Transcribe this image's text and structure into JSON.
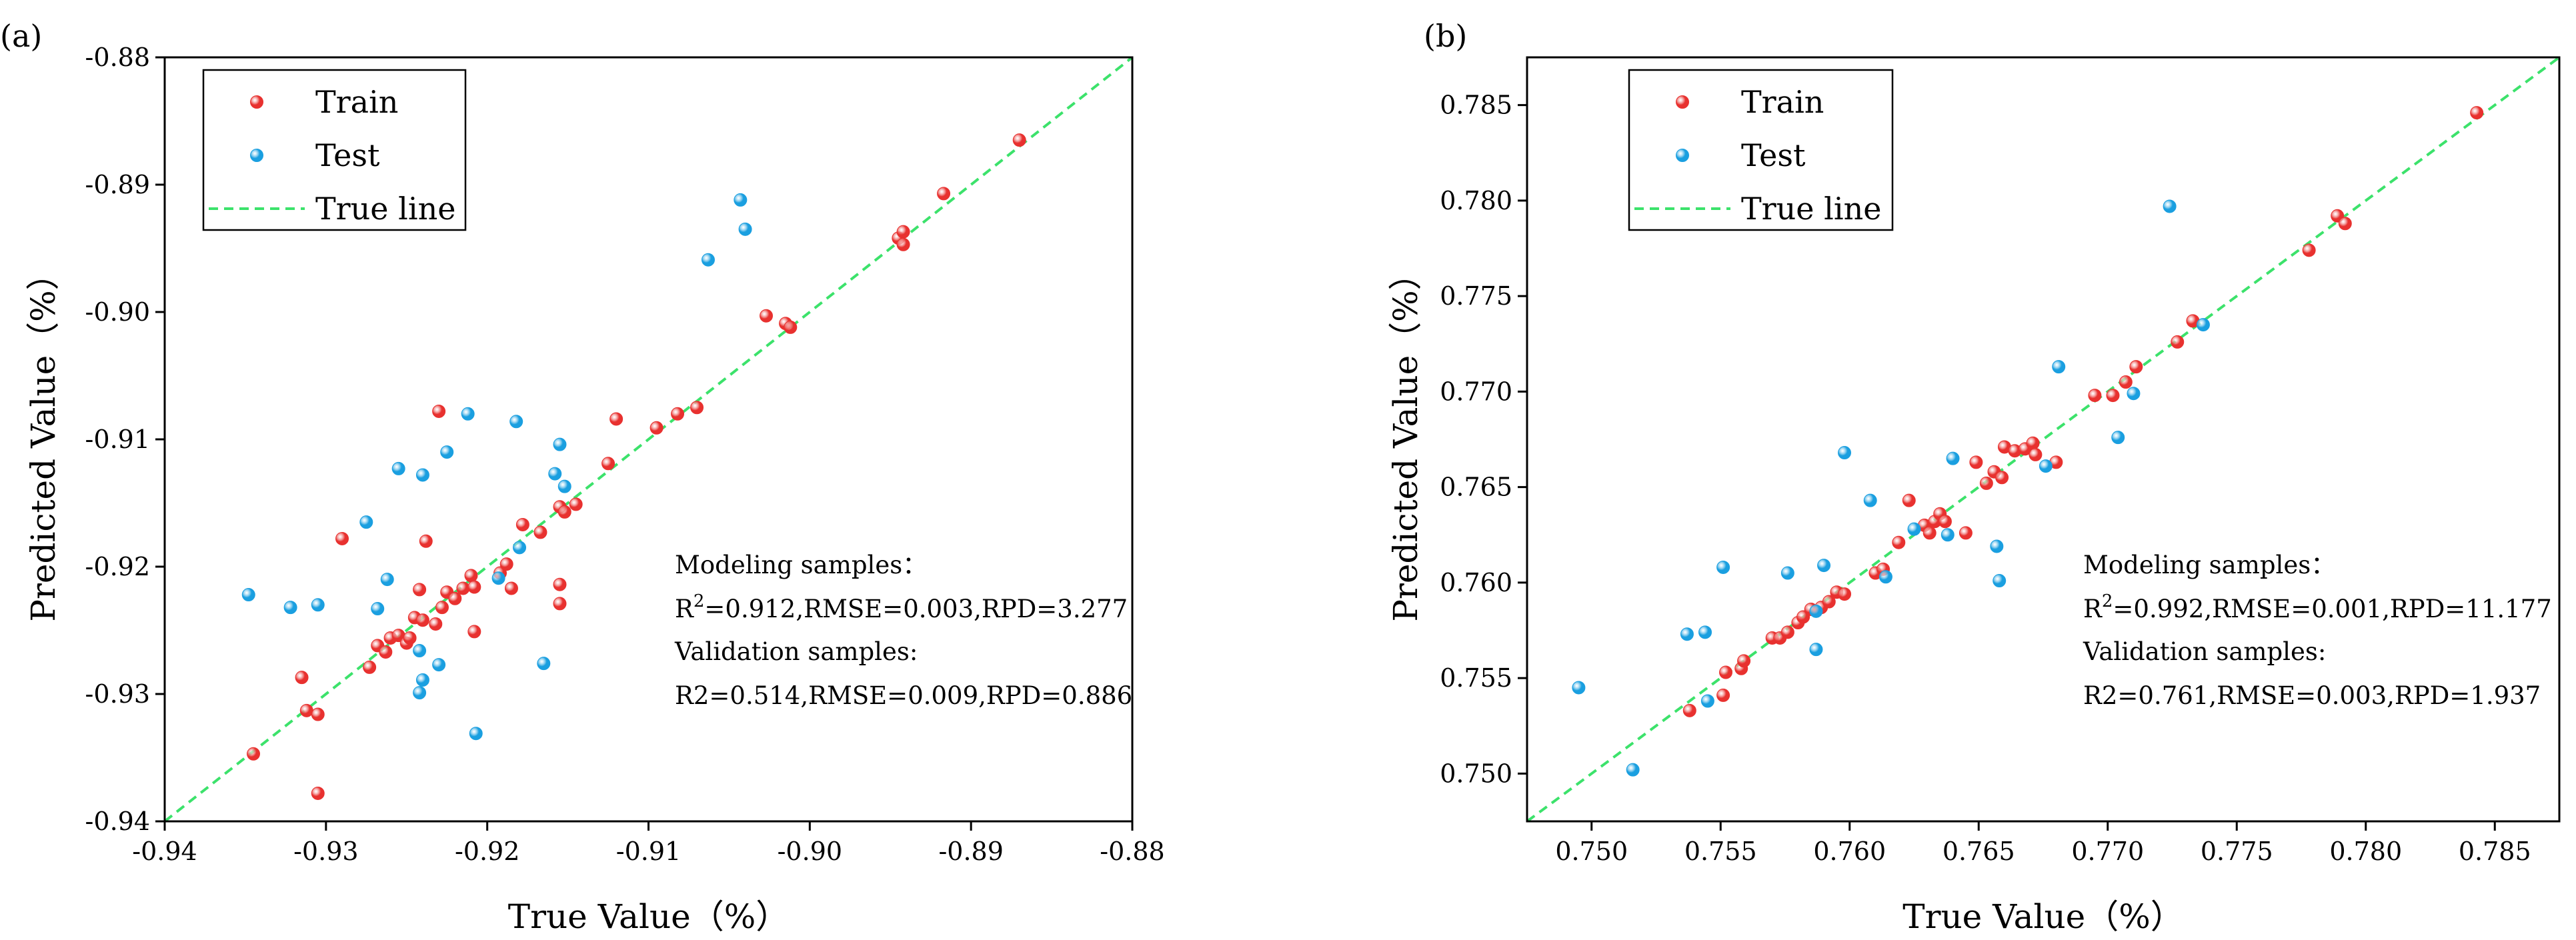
{
  "chart_data": [
    {
      "type": "scatter",
      "panel_label": "(a)",
      "xlabel": "True Value（%）",
      "ylabel": "Predicted Value（%）",
      "xlim": [
        -0.94,
        -0.88
      ],
      "ylim": [
        -0.94,
        -0.88
      ],
      "xticks": [
        -0.94,
        -0.93,
        -0.92,
        -0.91,
        -0.9,
        -0.89,
        -0.88
      ],
      "yticks": [
        -0.94,
        -0.93,
        -0.92,
        -0.91,
        -0.9,
        -0.89,
        -0.88
      ],
      "xtick_labels": [
        "-0.94",
        "-0.93",
        "-0.92",
        "-0.91",
        "-0.90",
        "-0.89",
        "-0.88"
      ],
      "ytick_labels": [
        "-0.94",
        "-0.93",
        "-0.92",
        "-0.91",
        "-0.90",
        "-0.89",
        "-0.88"
      ],
      "legend": {
        "position": "top-left",
        "entries": [
          "Train",
          "Test",
          "True line"
        ]
      },
      "annotation": {
        "modeling_title": "Modeling samples：",
        "modeling_r2_prefix": "R",
        "modeling_r2_sup": "2",
        "modeling_metrics": "=0.912,RMSE=0.003,RPD=3.277",
        "validation_title": "Validation samples:",
        "validation_metrics": "R2=0.514,RMSE=0.009,RPD=0.886"
      },
      "series": [
        {
          "name": "Train",
          "color": "#e8312f",
          "points": [
            [
              -0.9345,
              -0.9347
            ],
            [
              -0.9315,
              -0.9287
            ],
            [
              -0.9312,
              -0.9313
            ],
            [
              -0.9305,
              -0.9316
            ],
            [
              -0.9305,
              -0.9378
            ],
            [
              -0.929,
              -0.9178
            ],
            [
              -0.9273,
              -0.9279
            ],
            [
              -0.9268,
              -0.9262
            ],
            [
              -0.9263,
              -0.9267
            ],
            [
              -0.926,
              -0.9256
            ],
            [
              -0.9255,
              -0.9254
            ],
            [
              -0.925,
              -0.926
            ],
            [
              -0.9248,
              -0.9256
            ],
            [
              -0.9245,
              -0.924
            ],
            [
              -0.9242,
              -0.9218
            ],
            [
              -0.924,
              -0.9242
            ],
            [
              -0.9238,
              -0.918
            ],
            [
              -0.9232,
              -0.9245
            ],
            [
              -0.923,
              -0.9078
            ],
            [
              -0.9228,
              -0.9232
            ],
            [
              -0.9225,
              -0.922
            ],
            [
              -0.922,
              -0.9225
            ],
            [
              -0.9215,
              -0.9217
            ],
            [
              -0.921,
              -0.9207
            ],
            [
              -0.9208,
              -0.9216
            ],
            [
              -0.9208,
              -0.9251
            ],
            [
              -0.9192,
              -0.9205
            ],
            [
              -0.9188,
              -0.9198
            ],
            [
              -0.9185,
              -0.9217
            ],
            [
              -0.9178,
              -0.9167
            ],
            [
              -0.9167,
              -0.9173
            ],
            [
              -0.9155,
              -0.9153
            ],
            [
              -0.9155,
              -0.9214
            ],
            [
              -0.9155,
              -0.9229
            ],
            [
              -0.9152,
              -0.9157
            ],
            [
              -0.9145,
              -0.9151
            ],
            [
              -0.9125,
              -0.9119
            ],
            [
              -0.912,
              -0.9084
            ],
            [
              -0.9095,
              -0.9091
            ],
            [
              -0.9082,
              -0.908
            ],
            [
              -0.907,
              -0.9075
            ],
            [
              -0.9027,
              -0.9003
            ],
            [
              -0.9015,
              -0.9009
            ],
            [
              -0.9012,
              -0.9012
            ],
            [
              -0.8945,
              -0.8942
            ],
            [
              -0.8942,
              -0.8937
            ],
            [
              -0.8942,
              -0.8947
            ],
            [
              -0.8917,
              -0.8907
            ],
            [
              -0.887,
              -0.8865
            ]
          ]
        },
        {
          "name": "Test",
          "color": "#1a9fe0",
          "points": [
            [
              -0.9348,
              -0.9222
            ],
            [
              -0.9322,
              -0.9232
            ],
            [
              -0.9305,
              -0.923
            ],
            [
              -0.9275,
              -0.9165
            ],
            [
              -0.9268,
              -0.9233
            ],
            [
              -0.9262,
              -0.921
            ],
            [
              -0.9255,
              -0.9123
            ],
            [
              -0.9242,
              -0.9266
            ],
            [
              -0.924,
              -0.9128
            ],
            [
              -0.924,
              -0.9289
            ],
            [
              -0.9242,
              -0.9299
            ],
            [
              -0.923,
              -0.9277
            ],
            [
              -0.9225,
              -0.911
            ],
            [
              -0.9212,
              -0.908
            ],
            [
              -0.9207,
              -0.9331
            ],
            [
              -0.9193,
              -0.9209
            ],
            [
              -0.9182,
              -0.9086
            ],
            [
              -0.918,
              -0.9185
            ],
            [
              -0.9165,
              -0.9276
            ],
            [
              -0.9158,
              -0.9127
            ],
            [
              -0.9155,
              -0.9104
            ],
            [
              -0.9152,
              -0.9137
            ],
            [
              -0.9063,
              -0.8959
            ],
            [
              -0.9043,
              -0.8912
            ],
            [
              -0.904,
              -0.8935
            ]
          ]
        },
        {
          "name": "True line",
          "color": "#3ce26b",
          "points": [
            [
              -0.94,
              -0.94
            ],
            [
              -0.88,
              -0.88
            ]
          ]
        }
      ]
    },
    {
      "type": "scatter",
      "panel_label": "(b)",
      "xlabel": "True Value（%）",
      "ylabel": "Predicted Value（%）",
      "xlim": [
        0.7475,
        0.7875
      ],
      "ylim": [
        0.7475,
        0.7875
      ],
      "xticks": [
        0.75,
        0.755,
        0.76,
        0.765,
        0.77,
        0.775,
        0.78,
        0.785
      ],
      "yticks": [
        0.75,
        0.755,
        0.76,
        0.765,
        0.77,
        0.775,
        0.78,
        0.785
      ],
      "xtick_labels": [
        "0.750",
        "0.755",
        "0.760",
        "0.765",
        "0.770",
        "0.775",
        "0.780",
        "0.785"
      ],
      "ytick_labels": [
        "0.750",
        "0.755",
        "0.760",
        "0.765",
        "0.770",
        "0.775",
        "0.780",
        "0.785"
      ],
      "legend": {
        "position": "top-left",
        "entries": [
          "Train",
          "Test",
          "True line"
        ]
      },
      "annotation": {
        "modeling_title": "Modeling samples：",
        "modeling_r2_prefix": "R",
        "modeling_r2_sup": "2",
        "modeling_metrics": "=0.992,RMSE=0.001,RPD=11.177",
        "validation_title": "Validation samples:",
        "validation_metrics": "R2=0.761,RMSE=0.003,RPD=1.937"
      },
      "series": [
        {
          "name": "Train",
          "color": "#e8312f",
          "points": [
            [
              0.7538,
              0.7533
            ],
            [
              0.7551,
              0.7541
            ],
            [
              0.7552,
              0.7553
            ],
            [
              0.7558,
              0.7555
            ],
            [
              0.7559,
              0.7559
            ],
            [
              0.757,
              0.7571
            ],
            [
              0.7573,
              0.7571
            ],
            [
              0.7576,
              0.7574
            ],
            [
              0.758,
              0.7579
            ],
            [
              0.7582,
              0.7582
            ],
            [
              0.7585,
              0.7586
            ],
            [
              0.7589,
              0.7587
            ],
            [
              0.7592,
              0.759
            ],
            [
              0.7595,
              0.7595
            ],
            [
              0.7598,
              0.7594
            ],
            [
              0.761,
              0.7605
            ],
            [
              0.7613,
              0.7607
            ],
            [
              0.7619,
              0.7621
            ],
            [
              0.7623,
              0.7643
            ],
            [
              0.7629,
              0.763
            ],
            [
              0.7631,
              0.7626
            ],
            [
              0.7633,
              0.7632
            ],
            [
              0.7635,
              0.7636
            ],
            [
              0.7637,
              0.7632
            ],
            [
              0.7645,
              0.7626
            ],
            [
              0.7649,
              0.7663
            ],
            [
              0.7653,
              0.7652
            ],
            [
              0.7656,
              0.7658
            ],
            [
              0.7659,
              0.7655
            ],
            [
              0.766,
              0.7671
            ],
            [
              0.7664,
              0.7669
            ],
            [
              0.7668,
              0.767
            ],
            [
              0.7671,
              0.7673
            ],
            [
              0.7672,
              0.7667
            ],
            [
              0.768,
              0.7663
            ],
            [
              0.7695,
              0.7698
            ],
            [
              0.7702,
              0.7698
            ],
            [
              0.7707,
              0.7705
            ],
            [
              0.7711,
              0.7713
            ],
            [
              0.7727,
              0.7726
            ],
            [
              0.7733,
              0.7737
            ],
            [
              0.7778,
              0.7774
            ],
            [
              0.7789,
              0.7792
            ],
            [
              0.7792,
              0.7788
            ],
            [
              0.7843,
              0.7846
            ]
          ]
        },
        {
          "name": "Test",
          "color": "#1a9fe0",
          "points": [
            [
              0.7495,
              0.7545
            ],
            [
              0.7516,
              0.7502
            ],
            [
              0.7537,
              0.7573
            ],
            [
              0.7544,
              0.7574
            ],
            [
              0.7545,
              0.7538
            ],
            [
              0.7551,
              0.7608
            ],
            [
              0.7576,
              0.7605
            ],
            [
              0.7587,
              0.7565
            ],
            [
              0.7587,
              0.7585
            ],
            [
              0.759,
              0.7609
            ],
            [
              0.7598,
              0.7668
            ],
            [
              0.7608,
              0.7643
            ],
            [
              0.7614,
              0.7603
            ],
            [
              0.7625,
              0.7628
            ],
            [
              0.7638,
              0.7625
            ],
            [
              0.764,
              0.7665
            ],
            [
              0.7657,
              0.7619
            ],
            [
              0.7658,
              0.7601
            ],
            [
              0.7676,
              0.7661
            ],
            [
              0.7681,
              0.7713
            ],
            [
              0.7704,
              0.7676
            ],
            [
              0.771,
              0.7699
            ],
            [
              0.7724,
              0.7797
            ],
            [
              0.7737,
              0.7735
            ]
          ]
        },
        {
          "name": "True line",
          "color": "#3ce26b",
          "points": [
            [
              0.7475,
              0.7475
            ],
            [
              0.7875,
              0.7875
            ]
          ]
        }
      ]
    }
  ]
}
